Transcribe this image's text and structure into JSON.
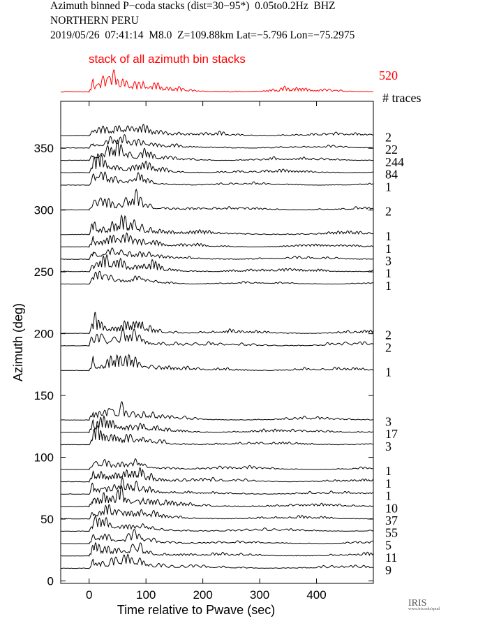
{
  "header": {
    "line1": "Azimuth binned P−coda stacks (dist=30−95*)  0.05to0.2Hz  BHZ",
    "line2": "NORTHERN PERU",
    "line3": "2019/05/26  07:41:14  M8.0  Z=109.88km Lat=−5.796 Lon=−75.2975"
  },
  "logo": {
    "text": "IRIS",
    "sub": "www.iris.edu/spud"
  },
  "chart_data": {
    "type": "line",
    "title": "Azimuth binned P-coda stacks",
    "xlabel": "Time relative to Pwave (sec)",
    "ylabel": "Azimuth (deg)",
    "xlim": [
      -50,
      500
    ],
    "ylim": [
      -2,
      388
    ],
    "xticks": [
      0,
      100,
      200,
      300,
      400
    ],
    "yticks": [
      0,
      50,
      100,
      150,
      200,
      250,
      300,
      350
    ],
    "stack": {
      "label": "stack of all azimuth bin stacks",
      "count": "520",
      "color": "#ff0000"
    },
    "traces_header": "# traces",
    "traces": [
      {
        "azimuth": 360,
        "count": "2"
      },
      {
        "azimuth": 350,
        "count": "22"
      },
      {
        "azimuth": 340,
        "count": "244"
      },
      {
        "azimuth": 330,
        "count": "84"
      },
      {
        "azimuth": 320,
        "count": "1"
      },
      {
        "azimuth": 300,
        "count": "2"
      },
      {
        "azimuth": 280,
        "count": "1"
      },
      {
        "azimuth": 270,
        "count": "1"
      },
      {
        "azimuth": 260,
        "count": "3"
      },
      {
        "azimuth": 250,
        "count": "1"
      },
      {
        "azimuth": 240,
        "count": "1"
      },
      {
        "azimuth": 200,
        "count": "2"
      },
      {
        "azimuth": 190,
        "count": "2"
      },
      {
        "azimuth": 170,
        "count": "1"
      },
      {
        "azimuth": 130,
        "count": "3"
      },
      {
        "azimuth": 120,
        "count": "17"
      },
      {
        "azimuth": 110,
        "count": "3"
      },
      {
        "azimuth": 90,
        "count": "1"
      },
      {
        "azimuth": 80,
        "count": "1"
      },
      {
        "azimuth": 70,
        "count": "1"
      },
      {
        "azimuth": 60,
        "count": "10"
      },
      {
        "azimuth": 50,
        "count": "37"
      },
      {
        "azimuth": 40,
        "count": "55"
      },
      {
        "azimuth": 30,
        "count": "5"
      },
      {
        "azimuth": 20,
        "count": "11"
      },
      {
        "azimuth": 10,
        "count": "9"
      }
    ]
  }
}
